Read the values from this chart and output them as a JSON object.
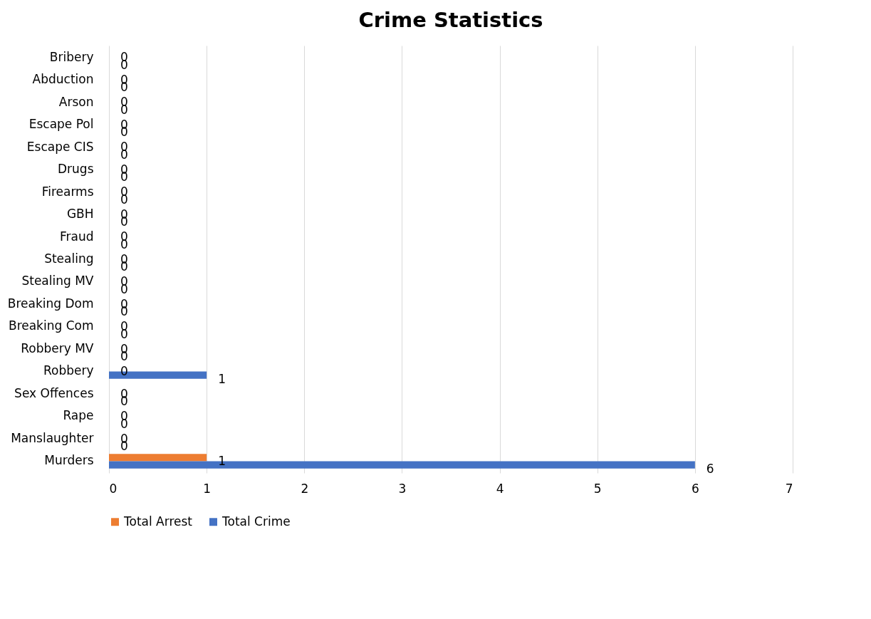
{
  "chart_data": {
    "type": "bar",
    "orientation": "horizontal",
    "title": "Crime Statistics",
    "categories": [
      "Bribery",
      "Abduction",
      "Arson",
      "Escape Pol",
      "Escape CIS",
      "Drugs",
      "Firearms",
      "GBH",
      "Fraud",
      "Stealing",
      "Stealing MV",
      "Breaking Dom",
      "Breaking Com",
      "Robbery MV",
      "Robbery",
      "Sex Offences",
      "Rape",
      "Manslaughter",
      "Murders"
    ],
    "series": [
      {
        "name": "Total Arrest",
        "color": "#ed7d31",
        "values": [
          0,
          0,
          0,
          0,
          0,
          0,
          0,
          0,
          0,
          0,
          0,
          0,
          0,
          0,
          0,
          0,
          0,
          0,
          1
        ]
      },
      {
        "name": "Total Crime",
        "color": "#4472c4",
        "values": [
          0,
          0,
          0,
          0,
          0,
          0,
          0,
          0,
          0,
          0,
          0,
          0,
          0,
          0,
          1,
          0,
          0,
          0,
          6
        ]
      }
    ],
    "xlim": [
      0,
      7
    ],
    "xticks": [
      0,
      1,
      2,
      3,
      4,
      5,
      6,
      7
    ],
    "grid": "x",
    "legend": "bottom",
    "data_labels": true
  }
}
